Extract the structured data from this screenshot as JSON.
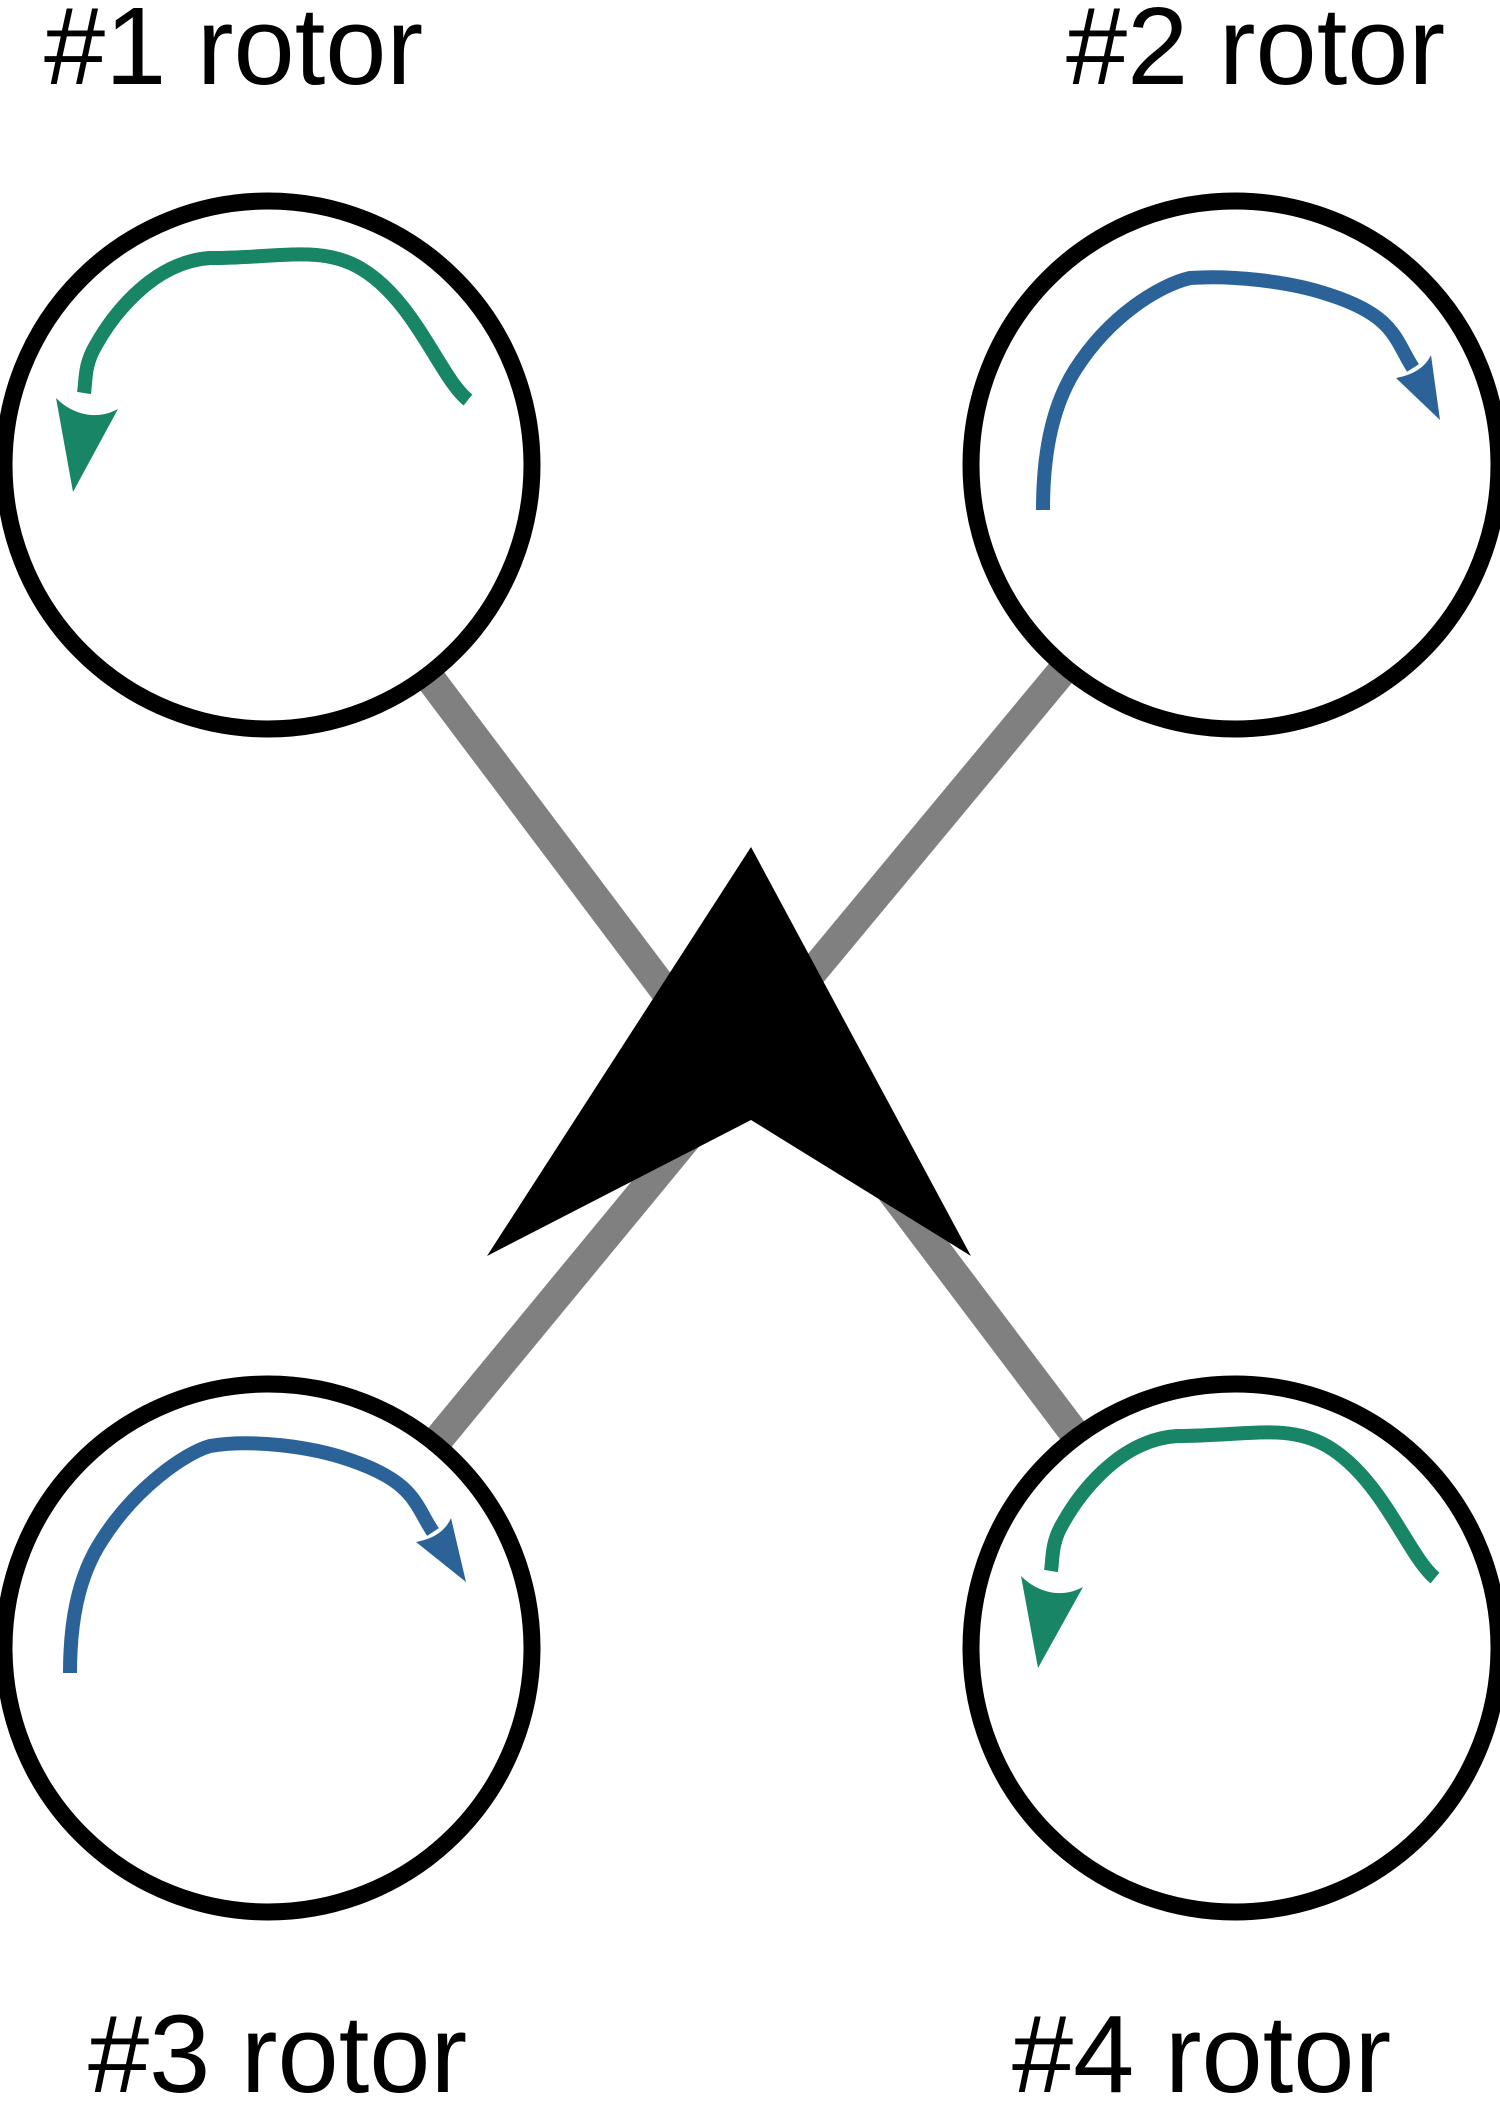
{
  "colors": {
    "background": "#ffffff",
    "arm": "#808080",
    "rotor_ring": "#000000",
    "heading_arrow": "#000000",
    "spin_clockwise": "#2b6399",
    "spin_counterclockwise": "#178566"
  },
  "rotors": [
    {
      "id": "rotor-1",
      "label": "#1 rotor",
      "spin": "counterclockwise"
    },
    {
      "id": "rotor-2",
      "label": "#2 rotor",
      "spin": "clockwise"
    },
    {
      "id": "rotor-3",
      "label": "#3 rotor",
      "spin": "clockwise"
    },
    {
      "id": "rotor-4",
      "label": "#4 rotor",
      "spin": "counterclockwise"
    }
  ],
  "heading_indicator": {
    "shape": "arrowhead",
    "direction": "up"
  }
}
